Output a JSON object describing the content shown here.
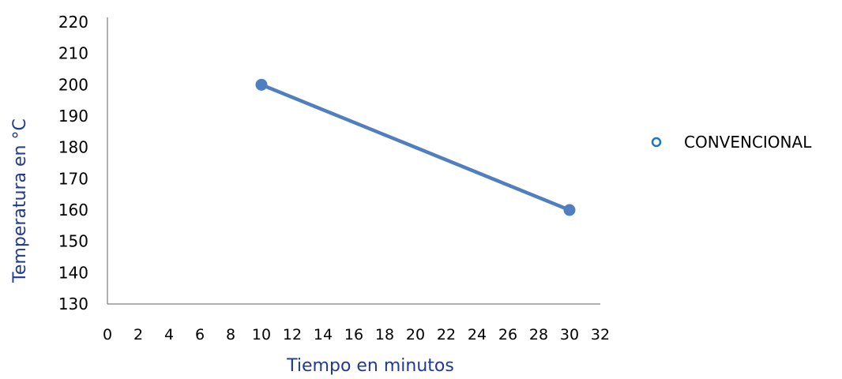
{
  "chart_data": {
    "type": "scatter",
    "title": "",
    "xlabel": "Tiempo en minutos",
    "ylabel": "Temperatura en °C",
    "xlim": [
      0,
      32
    ],
    "ylim": [
      130,
      220
    ],
    "x_ticks": [
      0,
      2,
      4,
      6,
      8,
      10,
      12,
      14,
      16,
      18,
      20,
      22,
      24,
      26,
      28,
      30,
      32
    ],
    "y_ticks": [
      130,
      140,
      150,
      160,
      170,
      180,
      190,
      200,
      210,
      220
    ],
    "grid": false,
    "legend_position": "right",
    "series": [
      {
        "name": "CONVENCIONAL",
        "color": "#4f7fbf",
        "x": [
          10,
          30
        ],
        "y": [
          200,
          160
        ],
        "connected": true,
        "marker": "circle"
      }
    ],
    "legend_marker_color": "#1f75c4",
    "axis_color": "#7f7f7f",
    "axis_label_color": "#1f3a93",
    "tick_label_color": "#000000"
  }
}
